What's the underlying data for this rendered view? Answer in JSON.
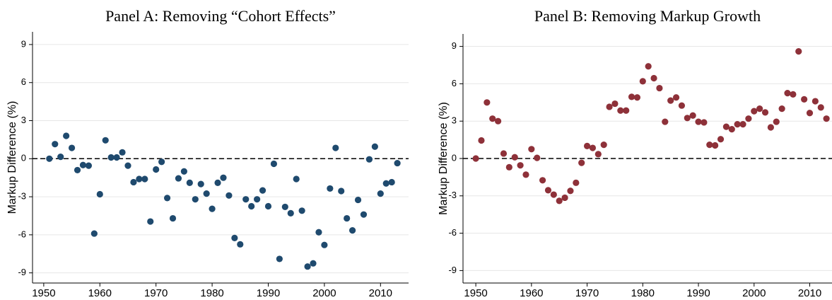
{
  "chart_data": [
    {
      "type": "scatter",
      "title": "Panel A: Removing “Cohort Effects”",
      "ylabel": "Markup Difference (%)",
      "color": "#1f4a6e",
      "x": [
        1951,
        1952,
        1953,
        1954,
        1955,
        1956,
        1957,
        1958,
        1959,
        1960,
        1961,
        1962,
        1963,
        1964,
        1965,
        1966,
        1967,
        1968,
        1969,
        1970,
        1971,
        1972,
        1973,
        1974,
        1975,
        1976,
        1977,
        1978,
        1979,
        1980,
        1981,
        1982,
        1983,
        1984,
        1985,
        1986,
        1987,
        1988,
        1989,
        1990,
        1991,
        1992,
        1993,
        1994,
        1995,
        1996,
        1997,
        1998,
        1999,
        2000,
        2001,
        2002,
        2003,
        2004,
        2005,
        2006,
        2007,
        2008,
        2009,
        2010,
        2011,
        2012,
        2013
      ],
      "values": [
        0,
        1.15,
        0.15,
        1.8,
        0.85,
        -0.9,
        -0.5,
        -0.55,
        -5.9,
        -2.8,
        1.45,
        0.1,
        0.1,
        0.5,
        -0.55,
        -1.85,
        -1.6,
        -1.6,
        -4.95,
        -0.85,
        -0.25,
        -3.1,
        -4.7,
        -1.55,
        -1.0,
        -1.9,
        -3.2,
        -2.0,
        -2.75,
        -3.95,
        -1.9,
        -1.5,
        -2.9,
        -6.25,
        -6.75,
        -3.2,
        -3.75,
        -3.2,
        -2.5,
        -3.75,
        -0.4,
        -7.9,
        -3.8,
        -4.3,
        -1.6,
        -4.1,
        -8.5,
        -8.25,
        -5.8,
        -6.8,
        -2.35,
        0.85,
        -2.55,
        -4.7,
        -5.65,
        -3.25,
        -4.4,
        -0.05,
        0.95,
        -2.75,
        -1.95,
        -1.85,
        -0.35
      ],
      "xlim": [
        1948,
        2015
      ],
      "ylim": [
        -9.8,
        10
      ],
      "xticks": [
        1950,
        1960,
        1970,
        1980,
        1990,
        2000,
        2010
      ],
      "yticks": [
        -9,
        -6,
        -3,
        0,
        3,
        6,
        9
      ],
      "grid": true,
      "hline": 0
    },
    {
      "type": "scatter",
      "title": "Panel B: Removing Markup Growth",
      "ylabel": "Markup Difference (%)",
      "color": "#8e3139",
      "x": [
        1950,
        1951,
        1952,
        1953,
        1954,
        1955,
        1956,
        1957,
        1958,
        1959,
        1960,
        1961,
        1962,
        1963,
        1964,
        1965,
        1966,
        1967,
        1968,
        1969,
        1970,
        1971,
        1972,
        1973,
        1974,
        1975,
        1976,
        1977,
        1978,
        1979,
        1980,
        1981,
        1982,
        1983,
        1984,
        1985,
        1986,
        1987,
        1988,
        1989,
        1990,
        1991,
        1992,
        1993,
        1994,
        1995,
        1996,
        1997,
        1998,
        1999,
        2000,
        2001,
        2002,
        2003,
        2004,
        2005,
        2006,
        2007,
        2008,
        2009,
        2010,
        2011,
        2012,
        2013
      ],
      "values": [
        0,
        1.45,
        4.5,
        3.2,
        3.0,
        0.4,
        -0.7,
        0.1,
        -0.55,
        -1.3,
        0.75,
        0.05,
        -1.75,
        -2.55,
        -2.9,
        -3.4,
        -3.15,
        -2.6,
        -1.95,
        -0.35,
        1.0,
        0.85,
        0.35,
        1.1,
        4.15,
        4.4,
        3.85,
        3.85,
        4.95,
        4.9,
        6.2,
        7.4,
        6.45,
        5.65,
        2.95,
        4.65,
        4.9,
        4.25,
        3.25,
        3.45,
        2.95,
        2.9,
        1.1,
        1.05,
        1.55,
        2.55,
        2.35,
        2.75,
        2.75,
        3.2,
        3.8,
        4.0,
        3.7,
        2.5,
        2.95,
        4.0,
        5.25,
        5.15,
        8.6,
        4.75,
        3.65,
        4.6,
        4.1,
        3.2
      ],
      "xlim": [
        1947.7,
        2014
      ],
      "ylim": [
        -10,
        10
      ],
      "xticks": [
        1950,
        1960,
        1970,
        1980,
        1990,
        2000,
        2010
      ],
      "yticks": [
        -9,
        -6,
        -3,
        0,
        3,
        6,
        9
      ],
      "grid": true,
      "hline": 0
    }
  ]
}
